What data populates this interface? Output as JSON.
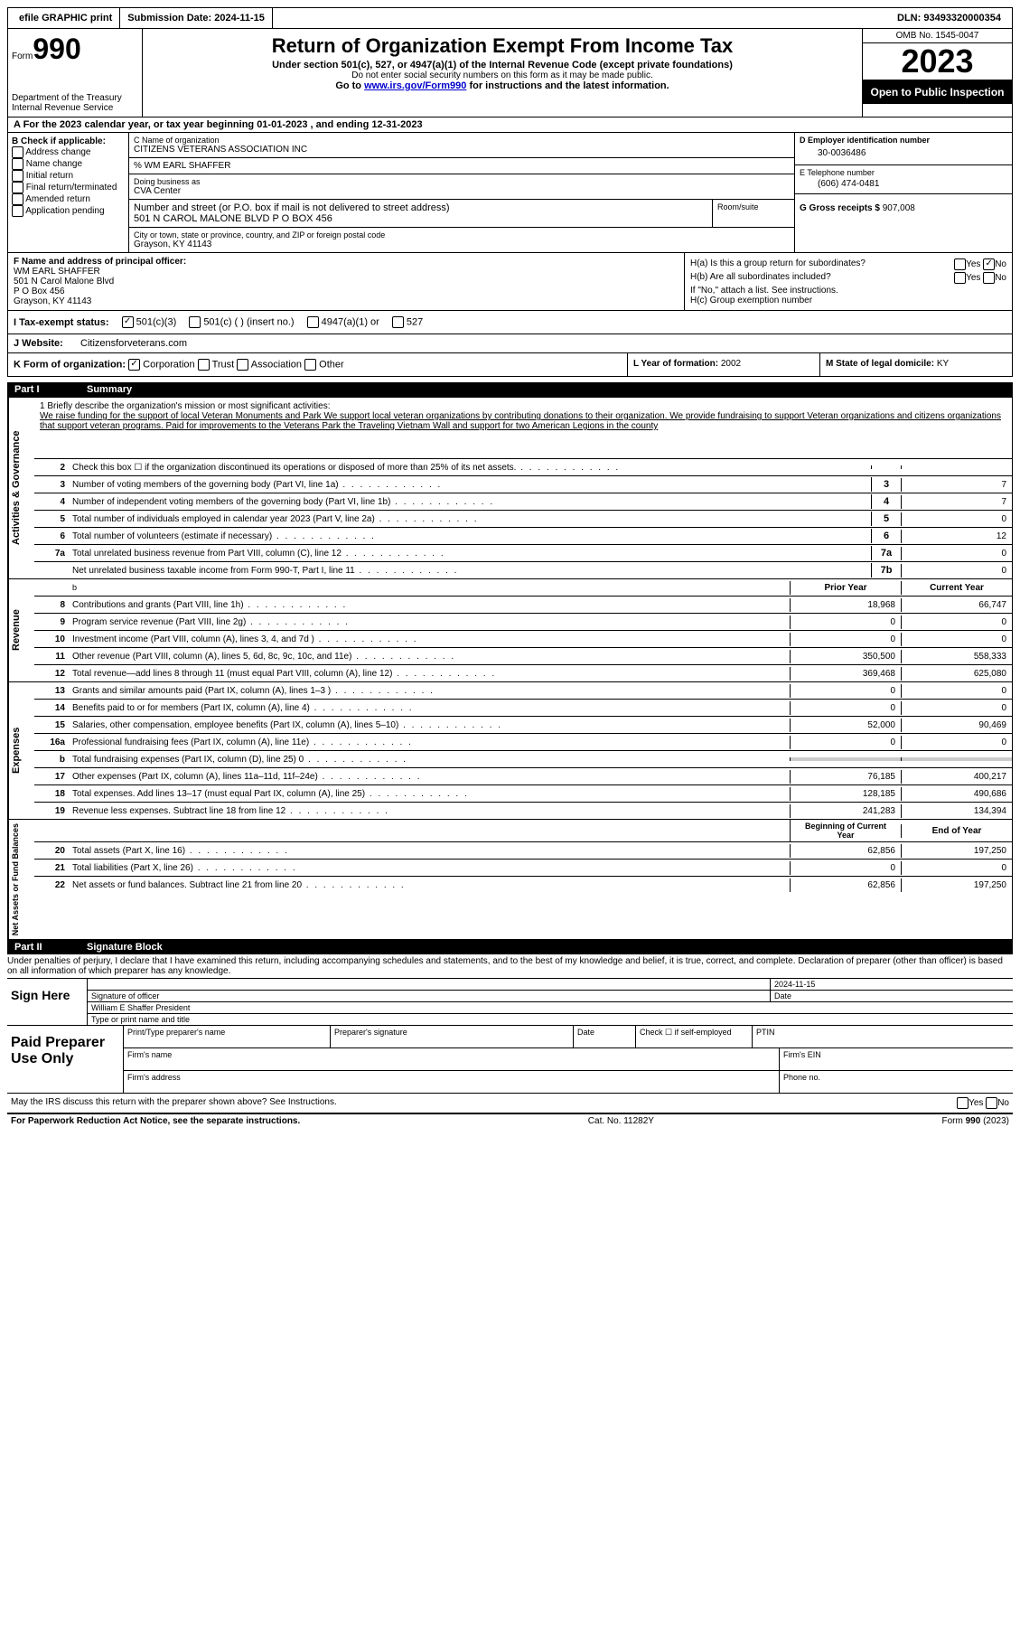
{
  "topbar": {
    "efile": "efile GRAPHIC print",
    "submission": "Submission Date: 2024-11-15",
    "dln": "DLN: 93493320000354"
  },
  "header": {
    "form_word": "Form",
    "form_no": "990",
    "dept": "Department of the Treasury Internal Revenue Service",
    "title": "Return of Organization Exempt From Income Tax",
    "sub": "Under section 501(c), 527, or 4947(a)(1) of the Internal Revenue Code (except private foundations)",
    "sub2": "Do not enter social security numbers on this form as it may be made public.",
    "sub3_pre": "Go to ",
    "sub3_link": "www.irs.gov/Form990",
    "sub3_post": " for instructions and the latest information.",
    "omb": "OMB No. 1545-0047",
    "year": "2023",
    "inspect": "Open to Public Inspection"
  },
  "rowA": "A  For the 2023 calendar year, or tax year beginning 01-01-2023   , and ending 12-31-2023",
  "boxB": {
    "label": "B Check if applicable:",
    "opts": [
      "Address change",
      "Name change",
      "Initial return",
      "Final return/terminated",
      "Amended return",
      "Application pending"
    ]
  },
  "boxC": {
    "name_label": "C Name of organization",
    "name": "CITIZENS VETERANS ASSOCIATION INC",
    "care_of": "% WM EARL SHAFFER",
    "dba_label": "Doing business as",
    "dba": "CVA Center",
    "street_label": "Number and street (or P.O. box if mail is not delivered to street address)",
    "room_label": "Room/suite",
    "street": "501 N CAROL MALONE BLVD P O BOX 456",
    "city_label": "City or town, state or province, country, and ZIP or foreign postal code",
    "city": "Grayson, KY  41143"
  },
  "boxD": {
    "label": "D Employer identification number",
    "ein": "30-0036486",
    "tel_label": "E Telephone number",
    "tel": "(606) 474-0481",
    "gross_label": "G Gross receipts $",
    "gross": "907,008"
  },
  "boxF": {
    "label": "F  Name and address of principal officer:",
    "lines": [
      "WM EARL SHAFFER",
      "501 N Carol Malone Blvd",
      "P O Box 456",
      "Grayson, KY  41143"
    ]
  },
  "boxH": {
    "ha": "H(a)  Is this a group return for subordinates?",
    "hb": "H(b)  Are all subordinates included?",
    "hb_note": "If \"No,\" attach a list. See instructions.",
    "hc": "H(c)  Group exemption number",
    "yes": "Yes",
    "no": "No"
  },
  "taxI": {
    "label": "I  Tax-exempt status:",
    "o1": "501(c)(3)",
    "o2": "501(c) (  ) (insert no.)",
    "o3": "4947(a)(1) or",
    "o4": "527"
  },
  "rowJ": {
    "label": "J  Website:",
    "value": "Citizensforveterans.com"
  },
  "rowK": {
    "label": "K Form of organization:",
    "o1": "Corporation",
    "o2": "Trust",
    "o3": "Association",
    "o4": "Other"
  },
  "rowL": {
    "label": "L Year of formation:",
    "val": "2002"
  },
  "rowM": {
    "label": "M State of legal domicile:",
    "val": "KY"
  },
  "part1": {
    "pt": "Part I",
    "title": "Summary"
  },
  "mission": {
    "label": "1   Briefly describe the organization's mission or most significant activities:",
    "text": "We raise funding for the support of local Veteran Monuments and Park We support local veteran organizations by contributing donations to their organization. We provide fundraising to support Veteran organizations and citizens organizations that support veteran programs. Paid for improvements to the Veterans Park the Traveling Vietnam Wall and support for two American Legions in the county"
  },
  "gov_lines": [
    {
      "n": "2",
      "desc": "Check this box ☐  if the organization discontinued its operations or disposed of more than 25% of its net assets.",
      "box": "",
      "val": ""
    },
    {
      "n": "3",
      "desc": "Number of voting members of the governing body (Part VI, line 1a)",
      "box": "3",
      "val": "7"
    },
    {
      "n": "4",
      "desc": "Number of independent voting members of the governing body (Part VI, line 1b)",
      "box": "4",
      "val": "7"
    },
    {
      "n": "5",
      "desc": "Total number of individuals employed in calendar year 2023 (Part V, line 2a)",
      "box": "5",
      "val": "0"
    },
    {
      "n": "6",
      "desc": "Total number of volunteers (estimate if necessary)",
      "box": "6",
      "val": "12"
    },
    {
      "n": "7a",
      "desc": "Total unrelated business revenue from Part VIII, column (C), line 12",
      "box": "7a",
      "val": "0"
    },
    {
      "n": "",
      "desc": "Net unrelated business taxable income from Form 990-T, Part I, line 11",
      "box": "7b",
      "val": "0"
    }
  ],
  "rev_head": {
    "prior": "Prior Year",
    "curr": "Current Year"
  },
  "rev_lines": [
    {
      "n": "8",
      "desc": "Contributions and grants (Part VIII, line 1h)",
      "p": "18,968",
      "c": "66,747"
    },
    {
      "n": "9",
      "desc": "Program service revenue (Part VIII, line 2g)",
      "p": "0",
      "c": "0"
    },
    {
      "n": "10",
      "desc": "Investment income (Part VIII, column (A), lines 3, 4, and 7d )",
      "p": "0",
      "c": "0"
    },
    {
      "n": "11",
      "desc": "Other revenue (Part VIII, column (A), lines 5, 6d, 8c, 9c, 10c, and 11e)",
      "p": "350,500",
      "c": "558,333"
    },
    {
      "n": "12",
      "desc": "Total revenue—add lines 8 through 11 (must equal Part VIII, column (A), line 12)",
      "p": "369,468",
      "c": "625,080"
    }
  ],
  "exp_lines": [
    {
      "n": "13",
      "desc": "Grants and similar amounts paid (Part IX, column (A), lines 1–3 )",
      "p": "0",
      "c": "0"
    },
    {
      "n": "14",
      "desc": "Benefits paid to or for members (Part IX, column (A), line 4)",
      "p": "0",
      "c": "0"
    },
    {
      "n": "15",
      "desc": "Salaries, other compensation, employee benefits (Part IX, column (A), lines 5–10)",
      "p": "52,000",
      "c": "90,469"
    },
    {
      "n": "16a",
      "desc": "Professional fundraising fees (Part IX, column (A), line 11e)",
      "p": "0",
      "c": "0"
    },
    {
      "n": "b",
      "desc": "Total fundraising expenses (Part IX, column (D), line 25) 0",
      "p": "",
      "c": "",
      "gray": true
    },
    {
      "n": "17",
      "desc": "Other expenses (Part IX, column (A), lines 11a–11d, 11f–24e)",
      "p": "76,185",
      "c": "400,217"
    },
    {
      "n": "18",
      "desc": "Total expenses. Add lines 13–17 (must equal Part IX, column (A), line 25)",
      "p": "128,185",
      "c": "490,686"
    },
    {
      "n": "19",
      "desc": "Revenue less expenses. Subtract line 18 from line 12",
      "p": "241,283",
      "c": "134,394"
    }
  ],
  "net_head": {
    "beg": "Beginning of Current Year",
    "end": "End of Year"
  },
  "net_lines": [
    {
      "n": "20",
      "desc": "Total assets (Part X, line 16)",
      "p": "62,856",
      "c": "197,250"
    },
    {
      "n": "21",
      "desc": "Total liabilities (Part X, line 26)",
      "p": "0",
      "c": "0"
    },
    {
      "n": "22",
      "desc": "Net assets or fund balances. Subtract line 21 from line 20",
      "p": "62,856",
      "c": "197,250"
    }
  ],
  "side_labels": {
    "gov": "Activities & Governance",
    "rev": "Revenue",
    "exp": "Expenses",
    "net": "Net Assets or Fund Balances"
  },
  "part2": {
    "pt": "Part II",
    "title": "Signature Block"
  },
  "perjury": "Under penalties of perjury, I declare that I have examined this return, including accompanying schedules and statements, and to the best of my knowledge and belief, it is true, correct, and complete. Declaration of preparer (other than officer) is based on all information of which preparer has any knowledge.",
  "sign": {
    "label": "Sign Here",
    "sig_of_officer": "Signature of officer",
    "date": "2024-11-15",
    "date_label": "Date",
    "name": "William E Shaffer President",
    "type_label": "Type or print name and title"
  },
  "prep": {
    "label": "Paid Preparer Use Only",
    "h1": "Print/Type preparer's name",
    "h2": "Preparer's signature",
    "h3": "Date",
    "h4_pre": "Check ☐ if self-employed",
    "h5": "PTIN",
    "firm_name": "Firm's name",
    "firm_ein": "Firm's EIN",
    "firm_addr": "Firm's address",
    "phone": "Phone no."
  },
  "discuss": "May the IRS discuss this return with the preparer shown above? See Instructions.",
  "footer": {
    "left": "For Paperwork Reduction Act Notice, see the separate instructions.",
    "mid": "Cat. No. 11282Y",
    "right": "Form 990 (2023)"
  }
}
